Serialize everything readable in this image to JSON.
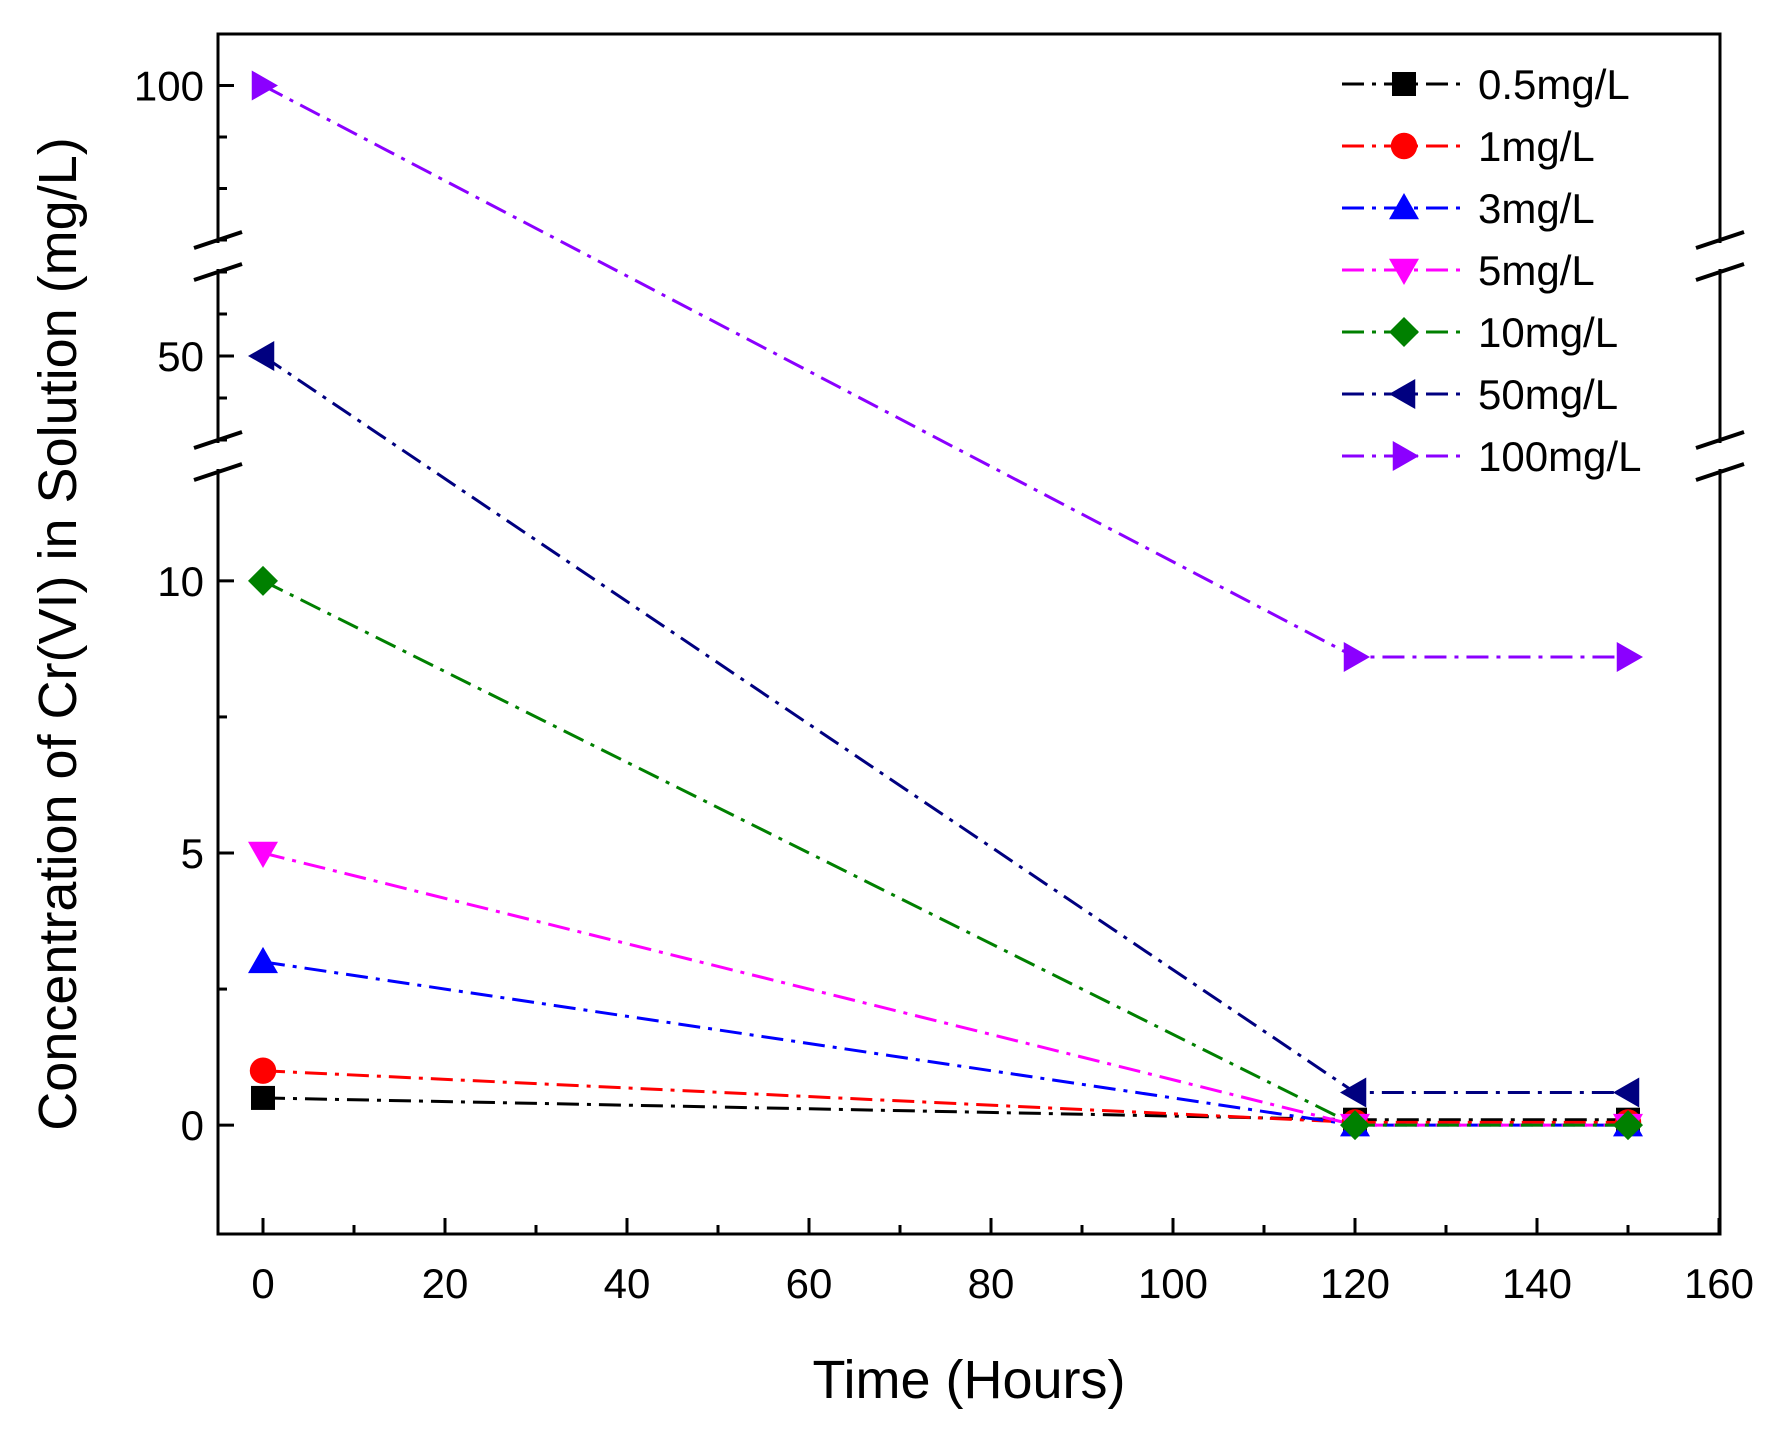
{
  "chart_data": {
    "type": "line",
    "xlabel": "Time (Hours)",
    "ylabel": "Concentration of Cr(VI) in Solution (mg/L)",
    "xlim": [
      -5,
      160
    ],
    "x_ticks": [
      "0",
      "20",
      "40",
      "60",
      "80",
      "100",
      "120",
      "140",
      "160"
    ],
    "y_axis_break": true,
    "y_segments": [
      {
        "range": [
          -2,
          12
        ],
        "ticks": [
          "0",
          "5",
          "10"
        ]
      },
      {
        "range": [
          40,
          60
        ],
        "ticks": [
          "50"
        ]
      },
      {
        "range": [
          85,
          105
        ],
        "ticks": [
          "100"
        ]
      }
    ],
    "line_style": "dash-dot",
    "legend_position": "top-right",
    "x": [
      0,
      120,
      150
    ],
    "series": [
      {
        "name": "0.5mg/L",
        "color": "#000000",
        "marker": "square",
        "values": [
          0.5,
          0.1,
          0.1
        ]
      },
      {
        "name": "1mg/L",
        "color": "#ff0000",
        "marker": "circle",
        "values": [
          1,
          0.05,
          0.05
        ]
      },
      {
        "name": "3mg/L",
        "color": "#0000ff",
        "marker": "triangle-up",
        "values": [
          3,
          0,
          0
        ]
      },
      {
        "name": "5mg/L",
        "color": "#ff00ff",
        "marker": "triangle-down",
        "values": [
          5,
          0,
          0
        ]
      },
      {
        "name": "10mg/L",
        "color": "#008000",
        "marker": "diamond",
        "values": [
          10,
          0,
          0
        ]
      },
      {
        "name": "50mg/L",
        "color": "#000080",
        "marker": "triangle-left",
        "values": [
          50,
          0.6,
          0.6
        ]
      },
      {
        "name": "100mg/L",
        "color": "#8b00ff",
        "marker": "triangle-right",
        "values": [
          100,
          8.6,
          8.6
        ]
      }
    ]
  }
}
